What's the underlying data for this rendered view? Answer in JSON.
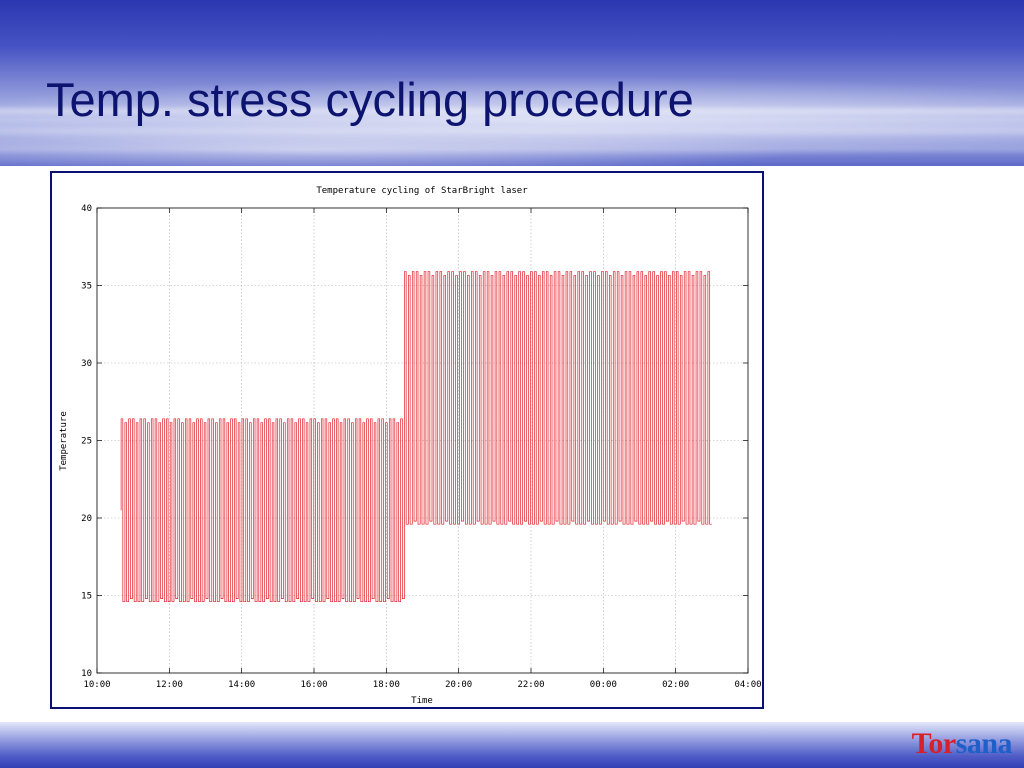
{
  "slide": {
    "title": "Temp. stress cycling procedure",
    "logo_part1": "Tor",
    "logo_part2": "sana"
  },
  "colors": {
    "title": "#0d1470",
    "frame_border": "#0a0f73",
    "series": "#e0202a",
    "logo_red": "#d8202a",
    "logo_blue": "#1f5fc8"
  },
  "chart_data": {
    "type": "line",
    "title": "Temperature cycling of StarBright laser",
    "xlabel": "Time",
    "ylabel": "Temperature",
    "x_ticks": [
      "10:00",
      "12:00",
      "14:00",
      "16:00",
      "18:00",
      "20:00",
      "22:00",
      "00:00",
      "02:00",
      "04:00"
    ],
    "y_ticks": [
      10,
      15,
      20,
      25,
      30,
      35,
      40
    ],
    "xlim_hours": [
      10,
      28
    ],
    "ylim": [
      10,
      40
    ],
    "grid": true,
    "legend": "none",
    "series": [
      {
        "phases": [
          {
            "start": "10:40",
            "end": "18:30",
            "low": 14.6,
            "high": 26.4,
            "cycles": 75
          },
          {
            "start": "18:30",
            "end": "03:00",
            "low": 19.6,
            "high": 35.9,
            "cycles": 78
          }
        ]
      }
    ]
  }
}
